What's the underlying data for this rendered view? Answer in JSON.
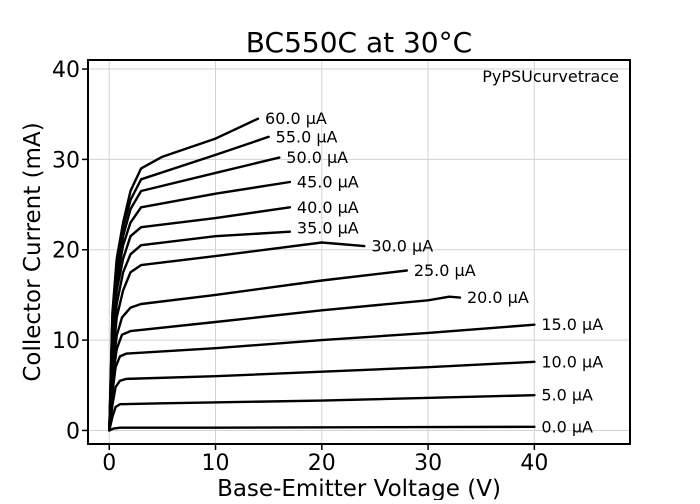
{
  "chart_data": {
    "type": "line",
    "title": "BC550C at 30°C",
    "xlabel": "Base-Emitter Voltage (V)",
    "ylabel": "Collector Current (mA)",
    "annotation": "PyPSUcurvetrace",
    "xlim": [
      -2,
      49
    ],
    "ylim": [
      -1.5,
      41
    ],
    "x_ticks": [
      0,
      10,
      20,
      30,
      40
    ],
    "y_ticks": [
      0,
      10,
      20,
      30,
      40
    ],
    "grid": true,
    "line_color": "#000000",
    "grid_color": "#d3d3d3",
    "series": [
      {
        "name": "0.0 µA",
        "points": [
          [
            0,
            0
          ],
          [
            0.4,
            0.2
          ],
          [
            1,
            0.3
          ],
          [
            10,
            0.3
          ],
          [
            40,
            0.4
          ]
        ]
      },
      {
        "name": "5.0 µA",
        "points": [
          [
            0,
            0
          ],
          [
            0.3,
            1.5
          ],
          [
            0.6,
            2.6
          ],
          [
            1,
            2.9
          ],
          [
            5,
            3.0
          ],
          [
            20,
            3.3
          ],
          [
            40,
            3.9
          ]
        ]
      },
      {
        "name": "10.0 µA",
        "points": [
          [
            0,
            0
          ],
          [
            0.3,
            2.8
          ],
          [
            0.6,
            4.8
          ],
          [
            1,
            5.5
          ],
          [
            1.6,
            5.7
          ],
          [
            10,
            6.0
          ],
          [
            20,
            6.5
          ],
          [
            30,
            7.0
          ],
          [
            40,
            7.6
          ]
        ]
      },
      {
        "name": "15.0 µA",
        "points": [
          [
            0,
            0
          ],
          [
            0.3,
            4.2
          ],
          [
            0.6,
            7.0
          ],
          [
            1,
            8.2
          ],
          [
            1.6,
            8.5
          ],
          [
            10,
            9.1
          ],
          [
            20,
            10.0
          ],
          [
            30,
            10.8
          ],
          [
            40,
            11.7
          ]
        ]
      },
      {
        "name": "20.0 µA",
        "points": [
          [
            0,
            0
          ],
          [
            0.3,
            5.5
          ],
          [
            0.7,
            9.0
          ],
          [
            1.2,
            10.6
          ],
          [
            2,
            11.0
          ],
          [
            10,
            12.0
          ],
          [
            20,
            13.3
          ],
          [
            30,
            14.4
          ],
          [
            32,
            14.8
          ],
          [
            33,
            14.7
          ]
        ]
      },
      {
        "name": "25.0 µA",
        "points": [
          [
            0,
            0
          ],
          [
            0.3,
            6.5
          ],
          [
            0.7,
            10.5
          ],
          [
            1.2,
            12.5
          ],
          [
            2,
            13.6
          ],
          [
            3,
            14.0
          ],
          [
            10,
            15.0
          ],
          [
            20,
            16.6
          ],
          [
            28,
            17.7
          ]
        ]
      },
      {
        "name": "30.0 µA",
        "points": [
          [
            0,
            0
          ],
          [
            0.3,
            7.5
          ],
          [
            0.7,
            12.5
          ],
          [
            1.3,
            15.5
          ],
          [
            2,
            17.5
          ],
          [
            3,
            18.3
          ],
          [
            10,
            19.3
          ],
          [
            20,
            20.8
          ],
          [
            24,
            20.4
          ]
        ]
      },
      {
        "name": "35.0 µA",
        "points": [
          [
            0,
            0
          ],
          [
            0.3,
            8.5
          ],
          [
            0.7,
            14.0
          ],
          [
            1.3,
            17.5
          ],
          [
            2,
            19.5
          ],
          [
            3,
            20.5
          ],
          [
            10,
            21.5
          ],
          [
            17,
            22.0
          ]
        ]
      },
      {
        "name": "40.0 µA",
        "points": [
          [
            0,
            0
          ],
          [
            0.3,
            9.5
          ],
          [
            0.7,
            15.5
          ],
          [
            1.3,
            19.0
          ],
          [
            2,
            21.5
          ],
          [
            3,
            22.5
          ],
          [
            10,
            23.5
          ],
          [
            17,
            24.7
          ]
        ]
      },
      {
        "name": "45.0 µA",
        "points": [
          [
            0,
            0
          ],
          [
            0.3,
            10.5
          ],
          [
            0.7,
            16.5
          ],
          [
            1.3,
            20.5
          ],
          [
            2,
            23.0
          ],
          [
            3,
            24.7
          ],
          [
            10,
            26.2
          ],
          [
            17,
            27.5
          ]
        ]
      },
      {
        "name": "50.0 µA",
        "points": [
          [
            0,
            0
          ],
          [
            0.3,
            11.5
          ],
          [
            0.7,
            17.5
          ],
          [
            1.3,
            21.5
          ],
          [
            2,
            24.5
          ],
          [
            3,
            26.5
          ],
          [
            10,
            28.5
          ],
          [
            16,
            30.2
          ]
        ]
      },
      {
        "name": "55.0 µA",
        "points": [
          [
            0,
            0
          ],
          [
            0.3,
            12.5
          ],
          [
            0.7,
            18.5
          ],
          [
            1.3,
            22.5
          ],
          [
            2,
            25.5
          ],
          [
            3,
            27.8
          ],
          [
            10,
            30.5
          ],
          [
            15,
            32.5
          ]
        ]
      },
      {
        "name": "60.0 µA",
        "points": [
          [
            0,
            0
          ],
          [
            0.3,
            13.0
          ],
          [
            0.7,
            19.0
          ],
          [
            1.3,
            23.0
          ],
          [
            2,
            26.5
          ],
          [
            3,
            29.0
          ],
          [
            5,
            30.3
          ],
          [
            10,
            32.3
          ],
          [
            14,
            34.5
          ]
        ]
      }
    ]
  }
}
